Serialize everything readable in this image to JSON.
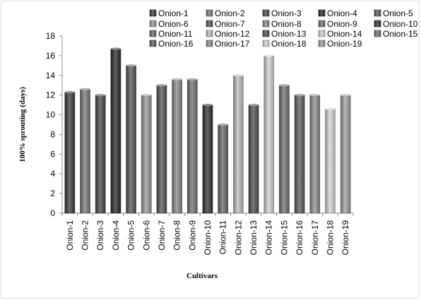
{
  "chart_data": {
    "type": "bar",
    "categories": [
      "Onion-1",
      "Onion-2",
      "Onion-3",
      "Onion-4",
      "Onion-5",
      "Onion-6",
      "Onion-7",
      "Onion-8",
      "Onion-9",
      "Onion-10",
      "Onion-11",
      "Onion-12",
      "Onion-13",
      "Onion-14",
      "Onion-15",
      "Onion-16",
      "Onion-17",
      "Onion-18",
      "Onion-19"
    ],
    "values": [
      12.3,
      12.6,
      12.0,
      16.7,
      15.0,
      12.0,
      13.0,
      13.6,
      13.6,
      11.0,
      9.0,
      14.0,
      11.0,
      16.0,
      13.0,
      12.0,
      12.0,
      10.6,
      12.0
    ],
    "colors": [
      "#3c3c3c",
      "#7a7a7a",
      "#4a4a4a",
      "#2a2a2a",
      "#585858",
      "#9a9a9a",
      "#555555",
      "#8a8a8a",
      "#737373",
      "#333333",
      "#6a6a6a",
      "#bdbdbd",
      "#505050",
      "#d2d2d2",
      "#707070",
      "#5e5e5e",
      "#8f8f8f",
      "#d5d5d5",
      "#a0a0a0"
    ],
    "title": "",
    "xlabel": "Cultivars",
    "ylabel": "100% sprouting (days)",
    "ylim": [
      0,
      18
    ],
    "yticks": [
      0,
      2,
      4,
      6,
      8,
      10,
      12,
      14,
      16,
      18
    ],
    "grid": false,
    "legend": "top"
  }
}
